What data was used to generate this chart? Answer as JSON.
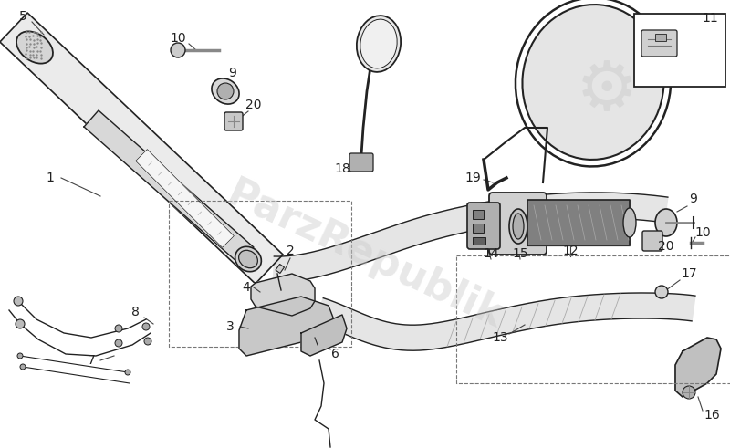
{
  "bg_color": "#ffffff",
  "line_color": "#222222",
  "fill_light": "#e8e8e8",
  "fill_mid": "#cccccc",
  "fill_dark": "#999999",
  "watermark_text": "ParzRepublik",
  "watermark_color": "#cccccc",
  "watermark_alpha": 0.45,
  "label_fs": 10,
  "figw": 8.0,
  "figh": 4.91,
  "dpi": 100
}
